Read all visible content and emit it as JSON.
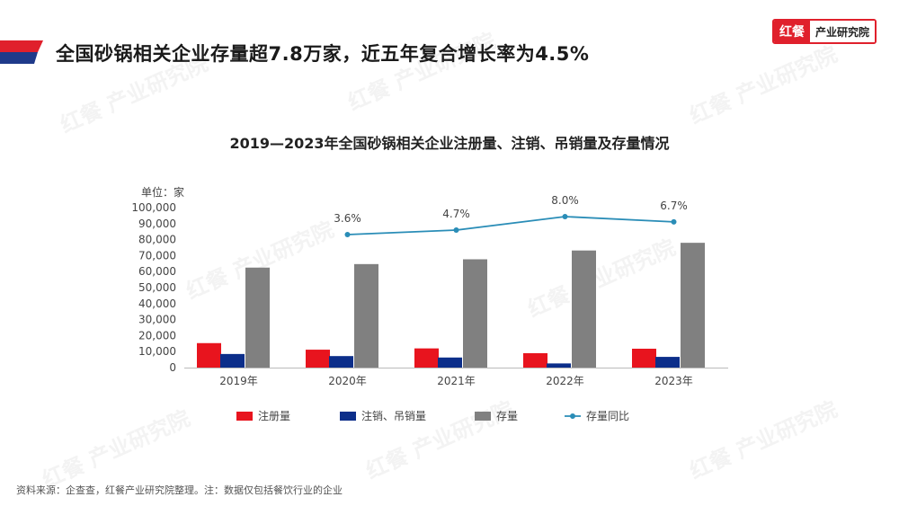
{
  "headline": "全国砂锅相关企业存量超7.8万家，近五年复合增长率为4.5%",
  "brand": {
    "mark": "红餐",
    "name": "产业研究院",
    "color": "#e0202c"
  },
  "watermark": "红餐 产业研究院",
  "source": "资料来源：企查查，红餐产业研究院整理。注：数据仅包括餐饮行业的企业",
  "colors": {
    "register": "#e8141e",
    "cancel": "#0c2e8a",
    "stock": "#808080",
    "yoy": "#2a8db7",
    "header_red": "#e0202c",
    "header_blue": "#1f3a8a"
  },
  "chart_data": {
    "type": "bar",
    "title": "2019—2023年全国砂锅相关企业注册量、注销、吊销量及存量情况",
    "unit_label": "单位：家",
    "categories": [
      "2019年",
      "2020年",
      "2021年",
      "2022年",
      "2023年"
    ],
    "ylim": [
      0,
      100000
    ],
    "yticks": [
      "0",
      "10,000",
      "20,000",
      "30,000",
      "40,000",
      "50,000",
      "60,000",
      "70,000",
      "80,000",
      "90,000",
      "100,000"
    ],
    "series": [
      {
        "name": "注册量",
        "values": [
          15300,
          11200,
          12000,
          9000,
          11800
        ]
      },
      {
        "name": "注销、吊销量",
        "values": [
          8500,
          7200,
          6300,
          2600,
          6700
        ]
      },
      {
        "name": "存量",
        "values": [
          62500,
          64700,
          67700,
          73200,
          78000
        ]
      }
    ],
    "line": {
      "name": "存量同比",
      "values": [
        null,
        3.6,
        4.7,
        8.0,
        6.7
      ],
      "labels": [
        "",
        "3.6%",
        "4.7%",
        "8.0%",
        "6.7%"
      ]
    },
    "legend": [
      "注册量",
      "注销、吊销量",
      "存量",
      "存量同比"
    ],
    "grid": false,
    "legend_position": "bottom"
  }
}
